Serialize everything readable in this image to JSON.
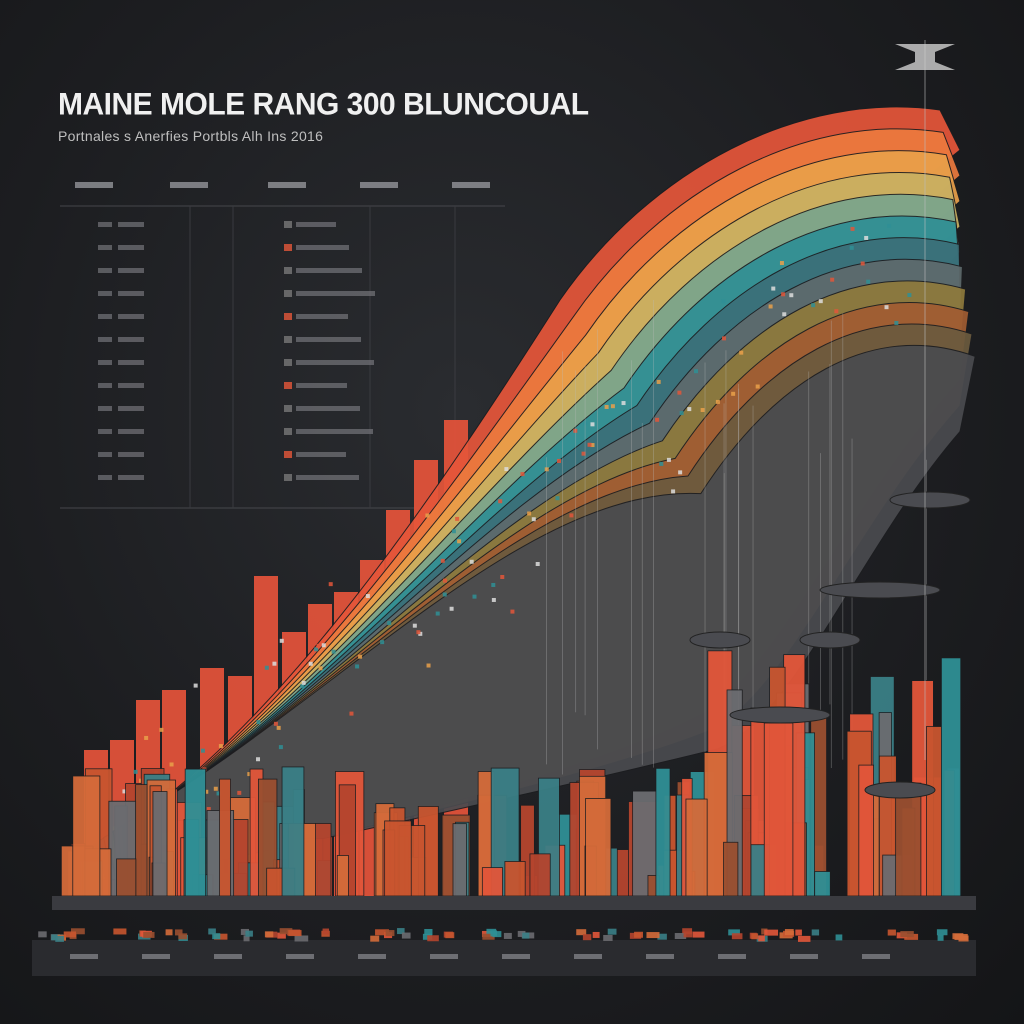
{
  "header": {
    "title": "MAINE MOLE RANG 300 BLUNCOUAL",
    "subtitle": "Portnales s  Anerfies Portbls Alh Ins 2016"
  },
  "colors": {
    "background": "#1c1d20",
    "red": "#e2563a",
    "orange": "#e8843f",
    "teal": "#2f8f95",
    "olive": "#8f7a3c",
    "grey": "#6b6c70"
  }
}
